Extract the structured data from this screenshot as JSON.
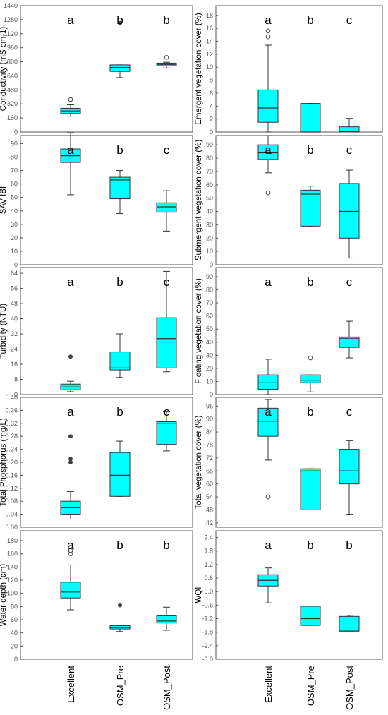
{
  "x_labels": [
    "Excellent",
    "OSM_Pre",
    "OSM_Post"
  ],
  "chart_data": [
    {
      "type": "box",
      "ylabel": "Conductivity (mS cm-1)",
      "ylim": [
        0,
        1440
      ],
      "yticks": [
        0,
        160,
        320,
        480,
        640,
        800,
        960,
        1120,
        1280,
        1440
      ],
      "categories": [
        "Excellent",
        "OSM_Pre",
        "OSM_Post"
      ],
      "letters": [
        "a",
        "b",
        "b"
      ],
      "boxes": [
        {
          "q1": 210,
          "median": 240,
          "q3": 270,
          "whisker_low": 180,
          "whisker_high": 310,
          "outliers": [
            {
              "v": 370,
              "style": "open"
            }
          ]
        },
        {
          "q1": 690,
          "median": 735,
          "q3": 765,
          "whisker_low": 620,
          "whisker_high": 765,
          "outliers": [
            {
              "v": 1240,
              "style": "star"
            }
          ]
        },
        {
          "q1": 755,
          "median": 770,
          "q3": 785,
          "whisker_low": 730,
          "whisker_high": 795,
          "outliers": [
            {
              "v": 850,
              "style": "open"
            }
          ]
        }
      ]
    },
    {
      "type": "box",
      "ylabel": "Emergent vegetation cover (%)",
      "ylim": [
        0,
        19.5
      ],
      "yticks": [
        0,
        2,
        4,
        6,
        8,
        10,
        12,
        14,
        16,
        18
      ],
      "categories": [
        "Excellent",
        "OSM_Pre",
        "OSM_Post"
      ],
      "letters": [
        "a",
        "b",
        "c"
      ],
      "boxes": [
        {
          "q1": 1.5,
          "median": 3.7,
          "q3": 6.5,
          "whisker_low": 0,
          "whisker_high": 13.4,
          "outliers": [
            {
              "v": 14.7,
              "style": "open"
            },
            {
              "v": 15.6,
              "style": "open"
            }
          ]
        },
        {
          "q1": 0,
          "median": 0,
          "q3": 4.4,
          "whisker_low": 0,
          "whisker_high": 4.4,
          "outliers": []
        },
        {
          "q1": 0,
          "median": 0.1,
          "q3": 0.8,
          "whisker_low": 0,
          "whisker_high": 2.1,
          "outliers": []
        }
      ]
    },
    {
      "type": "box",
      "ylabel": "SAV IBI",
      "ylim": [
        0,
        96
      ],
      "yticks": [
        0,
        10,
        20,
        30,
        40,
        50,
        60,
        70,
        80,
        90
      ],
      "categories": [
        "Excellent",
        "OSM_Pre",
        "OSM_Post"
      ],
      "letters": [
        "a",
        "b",
        "c"
      ],
      "boxes": [
        {
          "q1": 76,
          "median": 81,
          "q3": 86,
          "whisker_low": 52,
          "whisker_high": 98,
          "outliers": []
        },
        {
          "q1": 49,
          "median": 63,
          "q3": 65,
          "whisker_low": 38,
          "whisker_high": 70,
          "outliers": []
        },
        {
          "q1": 39,
          "median": 43,
          "q3": 46,
          "whisker_low": 25,
          "whisker_high": 55,
          "outliers": []
        }
      ]
    },
    {
      "type": "box",
      "ylabel": "Submergent vegetation cover (%)",
      "ylim": [
        0,
        97
      ],
      "yticks": [
        0,
        10,
        20,
        30,
        40,
        50,
        60,
        70,
        80,
        90
      ],
      "categories": [
        "Excellent",
        "OSM_Pre",
        "OSM_Post"
      ],
      "letters": [
        "a",
        "b",
        "c"
      ],
      "boxes": [
        {
          "q1": 79,
          "median": 84,
          "q3": 90,
          "whisker_low": 69,
          "whisker_high": 97,
          "outliers": [
            {
              "v": 54,
              "style": "open"
            }
          ]
        },
        {
          "q1": 29,
          "median": 53,
          "q3": 56,
          "whisker_low": 29,
          "whisker_high": 59,
          "outliers": []
        },
        {
          "q1": 20,
          "median": 40,
          "q3": 61,
          "whisker_low": 5,
          "whisker_high": 71,
          "outliers": []
        }
      ]
    },
    {
      "type": "box",
      "ylabel": "Turbidity (NTU)",
      "ylim": [
        0,
        67
      ],
      "yticks": [
        0,
        8,
        16,
        24,
        32,
        40,
        48,
        56,
        64
      ],
      "categories": [
        "Excellent",
        "OSM_Pre",
        "OSM_Post"
      ],
      "letters": [
        "a",
        "b",
        "c"
      ],
      "boxes": [
        {
          "q1": 2.5,
          "median": 4,
          "q3": 5.5,
          "whisker_low": 1.5,
          "whisker_high": 7,
          "outliers": [
            {
              "v": 20,
              "style": "star"
            }
          ]
        },
        {
          "q1": 13,
          "median": 14,
          "q3": 22.5,
          "whisker_low": 9,
          "whisker_high": 32,
          "outliers": []
        },
        {
          "q1": 14,
          "median": 29.5,
          "q3": 40.5,
          "whisker_low": 12,
          "whisker_high": 65,
          "outliers": []
        }
      ]
    },
    {
      "type": "box",
      "ylabel": "Floating vegetation cover (%)",
      "ylim": [
        0,
        97
      ],
      "yticks": [
        0,
        10,
        20,
        30,
        40,
        50,
        60,
        70,
        80,
        90
      ],
      "categories": [
        "Excellent",
        "OSM_Pre",
        "OSM_Post"
      ],
      "letters": [
        "a",
        "b",
        "c"
      ],
      "boxes": [
        {
          "q1": 4,
          "median": 9,
          "q3": 15,
          "whisker_low": 0,
          "whisker_high": 27,
          "outliers": []
        },
        {
          "q1": 9,
          "median": 11,
          "q3": 15,
          "whisker_low": 2,
          "whisker_high": 15,
          "outliers": [
            {
              "v": 28,
              "style": "open"
            }
          ]
        },
        {
          "q1": 36,
          "median": 43,
          "q3": 44,
          "whisker_low": 28,
          "whisker_high": 56,
          "outliers": []
        }
      ]
    },
    {
      "type": "box",
      "ylabel": "Total Phosphorus (mg/L)",
      "ylim": [
        0,
        0.4
      ],
      "yticks": [
        0.0,
        0.04,
        0.08,
        0.12,
        0.16,
        0.2,
        0.24,
        0.28,
        0.32,
        0.36,
        0.4
      ],
      "ytick_labels": [
        "0.00",
        "0.04",
        "0.08",
        "0.12",
        "0.16",
        "0.20",
        "0.24",
        "0.28",
        "0.32",
        "0.36",
        "0.40"
      ],
      "categories": [
        "Excellent",
        "OSM_Pre",
        "OSM_Post"
      ],
      "letters": [
        "a",
        "b",
        "c"
      ],
      "boxes": [
        {
          "q1": 0.04,
          "median": 0.06,
          "q3": 0.08,
          "whisker_low": 0.025,
          "whisker_high": 0.11,
          "outliers": [
            {
              "v": 0.2,
              "style": "star"
            },
            {
              "v": 0.21,
              "style": "star"
            },
            {
              "v": 0.28,
              "style": "star"
            }
          ]
        },
        {
          "q1": 0.095,
          "median": 0.16,
          "q3": 0.23,
          "whisker_low": 0.095,
          "whisker_high": 0.265,
          "outliers": []
        },
        {
          "q1": 0.255,
          "median": 0.32,
          "q3": 0.325,
          "whisker_low": 0.235,
          "whisker_high": 0.355,
          "outliers": []
        }
      ]
    },
    {
      "type": "box",
      "ylabel": "Total vegetation cover (%)",
      "ylim": [
        40,
        100
      ],
      "yticks": [
        42,
        48,
        54,
        60,
        66,
        72,
        78,
        84,
        90,
        96
      ],
      "categories": [
        "Excellent",
        "OSM_Pre",
        "OSM_Post"
      ],
      "letters": [
        "a",
        "b",
        "c"
      ],
      "boxes": [
        {
          "q1": 82,
          "median": 89,
          "q3": 95,
          "whisker_low": 71,
          "whisker_high": 99,
          "outliers": [
            {
              "v": 54,
              "style": "open"
            }
          ]
        },
        {
          "q1": 48,
          "median": 66,
          "q3": 67,
          "whisker_low": 48,
          "whisker_high": 67,
          "outliers": []
        },
        {
          "q1": 60,
          "median": 66,
          "q3": 76,
          "whisker_low": 46,
          "whisker_high": 80,
          "outliers": []
        }
      ]
    },
    {
      "type": "box",
      "ylabel": "Water depth (cm)",
      "ylim": [
        0,
        195
      ],
      "yticks": [
        0,
        20,
        40,
        60,
        80,
        100,
        120,
        140,
        160,
        180
      ],
      "categories": [
        "Excellent",
        "OSM_Pre",
        "OSM_Post"
      ],
      "letters": [
        "a",
        "b",
        "b"
      ],
      "boxes": [
        {
          "q1": 93,
          "median": 102,
          "q3": 117,
          "whisker_low": 75,
          "whisker_high": 143,
          "outliers": [
            {
              "v": 160,
              "style": "open"
            },
            {
              "v": 165,
              "style": "open"
            }
          ]
        },
        {
          "q1": 46,
          "median": 48,
          "q3": 51,
          "whisker_low": 42,
          "whisker_high": 51,
          "outliers": [
            {
              "v": 82,
              "style": "star"
            }
          ]
        },
        {
          "q1": 55,
          "median": 58,
          "q3": 66,
          "whisker_low": 44,
          "whisker_high": 79,
          "outliers": []
        }
      ]
    },
    {
      "type": "box",
      "ylabel": "WQI",
      "ylim": [
        -3.0,
        2.7
      ],
      "yticks": [
        -3.0,
        -2.4,
        -1.8,
        -1.2,
        -0.6,
        0.0,
        0.6,
        1.2,
        1.8,
        2.4
      ],
      "ytick_labels": [
        "-3.0",
        "-2.4",
        "-1.8",
        "-1.2",
        "-0.6",
        "0.0",
        "0.6",
        "1.2",
        "1.8",
        "2.4"
      ],
      "categories": [
        "Excellent",
        "OSM_Pre",
        "OSM_Post"
      ],
      "letters": [
        "a",
        "b",
        "b"
      ],
      "boxes": [
        {
          "q1": 0.25,
          "median": 0.5,
          "q3": 0.75,
          "whisker_low": -0.5,
          "whisker_high": 1.05,
          "outliers": []
        },
        {
          "q1": -1.5,
          "median": -1.2,
          "q3": -0.65,
          "whisker_low": -1.5,
          "whisker_high": -0.65,
          "outliers": []
        },
        {
          "q1": -1.75,
          "median": -1.75,
          "q3": -1.1,
          "whisker_low": -1.75,
          "whisker_high": -1.05,
          "outliers": []
        }
      ]
    }
  ]
}
